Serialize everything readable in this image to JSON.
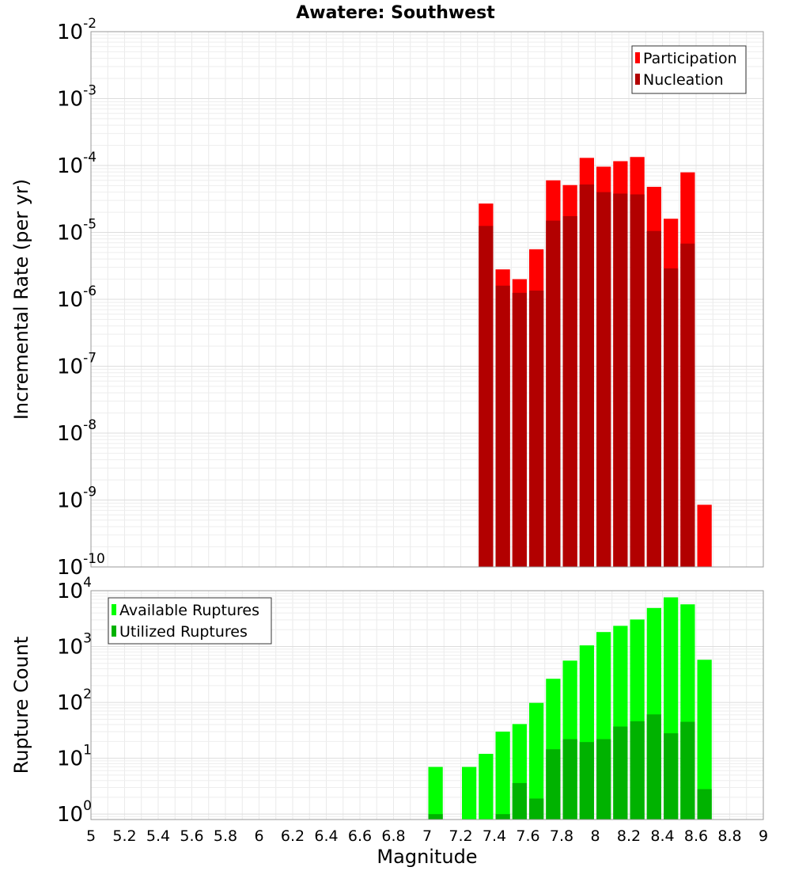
{
  "chart_data": [
    {
      "type": "bar",
      "title": "Awatere: Southwest",
      "ylabel": "Incremental Rate (per yr)",
      "xlabel": "",
      "yscale": "log",
      "ylim_exp": [
        -10,
        -2
      ],
      "xlim": [
        5,
        9
      ],
      "legend_position": "top-right",
      "bar_width": 0.1,
      "series": [
        {
          "name": "Participation",
          "color": "#ff0000",
          "x": [
            7.35,
            7.45,
            7.55,
            7.65,
            7.75,
            7.85,
            7.95,
            8.05,
            8.15,
            8.25,
            8.35,
            8.45,
            8.55,
            8.65
          ],
          "values": [
            2.7e-05,
            2.8e-06,
            2e-06,
            5.6e-06,
            6e-05,
            5.1e-05,
            0.00013,
            9.6e-05,
            0.000116,
            0.000134,
            4.8e-05,
            1.6e-05,
            7.9e-05,
            8.5e-10
          ]
        },
        {
          "name": "Nucleation",
          "color": "#b20000",
          "x": [
            7.35,
            7.45,
            7.55,
            7.65,
            7.75,
            7.85,
            7.95,
            8.05,
            8.15,
            8.25,
            8.35,
            8.45,
            8.55
          ],
          "values": [
            1.25e-05,
            1.6e-06,
            1.25e-06,
            1.35e-06,
            1.5e-05,
            1.75e-05,
            5.2e-05,
            4e-05,
            3.8e-05,
            3.7e-05,
            1.05e-05,
            2.9e-06,
            6.8e-06
          ]
        }
      ]
    },
    {
      "type": "bar",
      "title": "",
      "ylabel": "Rupture Count",
      "xlabel": "Magnitude",
      "yscale": "log",
      "ylim_exp": [
        0,
        4
      ],
      "ylim": [
        0.8,
        10000
      ],
      "xlim": [
        5,
        9
      ],
      "xticks": [
        "5",
        "5.2",
        "5.4",
        "5.6",
        "5.8",
        "6",
        "6.2",
        "6.4",
        "6.6",
        "6.8",
        "7",
        "7.2",
        "7.4",
        "7.6",
        "7.8",
        "8",
        "8.2",
        "8.4",
        "8.6",
        "8.8",
        "9"
      ],
      "legend_position": "top-left",
      "bar_width": 0.1,
      "series": [
        {
          "name": "Available Ruptures",
          "color": "#00ff00",
          "x": [
            7.05,
            7.25,
            7.35,
            7.45,
            7.55,
            7.65,
            7.75,
            7.85,
            7.95,
            8.05,
            8.15,
            8.25,
            8.35,
            8.45,
            8.55,
            8.65
          ],
          "values": [
            7,
            7,
            12,
            30,
            41,
            98,
            265,
            560,
            1050,
            1820,
            2350,
            3050,
            4900,
            7600,
            5700,
            580
          ]
        },
        {
          "name": "Utilized Ruptures",
          "color": "#00b200",
          "x": [
            7.05,
            7.45,
            7.55,
            7.65,
            7.75,
            7.85,
            7.95,
            8.05,
            8.15,
            8.25,
            8.35,
            8.45,
            8.55,
            8.65
          ],
          "values": [
            1,
            1,
            3.6,
            1.9,
            14.5,
            22,
            19.5,
            22,
            37,
            46,
            61,
            28,
            45,
            2.8
          ]
        }
      ]
    }
  ]
}
